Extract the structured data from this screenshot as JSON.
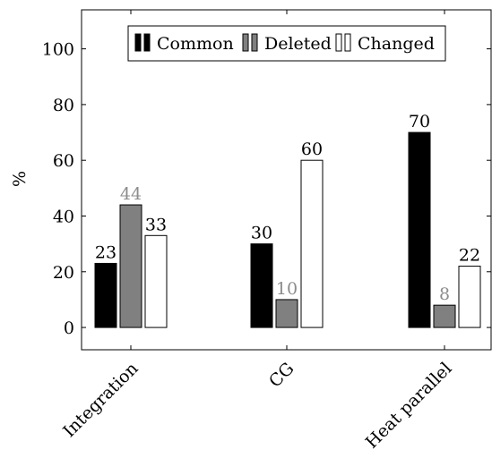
{
  "chart_data": {
    "type": "bar",
    "categories": [
      "Integration",
      "CG",
      "Heat parallel"
    ],
    "series": [
      {
        "name": "Common",
        "values": [
          23,
          30,
          70
        ],
        "color": "#000000",
        "label_color": "#000000"
      },
      {
        "name": "Deleted",
        "values": [
          44,
          10,
          8
        ],
        "color": "#808080",
        "label_color": "#8c8c8c"
      },
      {
        "name": "Changed",
        "values": [
          33,
          60,
          22
        ],
        "color": "#ffffff",
        "label_color": "#000000"
      }
    ],
    "ylabel": "%",
    "ylim": [
      -8,
      114
    ],
    "yticks": [
      0,
      20,
      40,
      60,
      80,
      100
    ],
    "legend_position": "top-center",
    "grid": false
  }
}
